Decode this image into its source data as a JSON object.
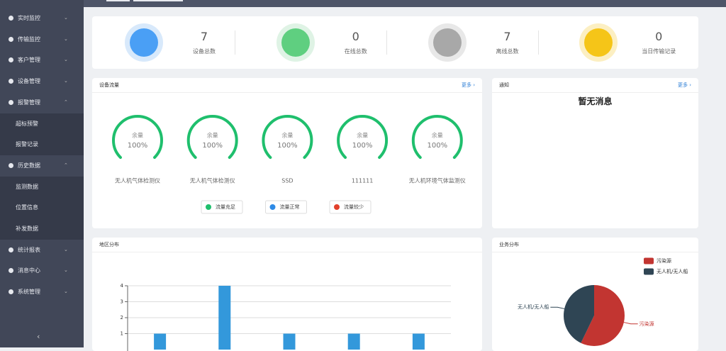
{
  "sidebar": {
    "menu": [
      {
        "label": "实时监控"
      },
      {
        "label": "传输监控"
      },
      {
        "label": "客户管理"
      },
      {
        "label": "设备管理"
      },
      {
        "label": "报警管理",
        "children": [
          "超标预警",
          "报警记录"
        ]
      },
      {
        "label": "历史数据",
        "children": [
          "监测数据",
          "位置信息",
          "补发数据"
        ]
      },
      {
        "label": "统计报表"
      },
      {
        "label": "消息中心"
      },
      {
        "label": "系统管理"
      }
    ]
  },
  "stats": [
    {
      "value": 7,
      "label": "设备总数"
    },
    {
      "value": 0,
      "label": "在线总数"
    },
    {
      "value": 7,
      "label": "离线总数"
    },
    {
      "value": 0,
      "label": "当日传输记录"
    }
  ],
  "device_flow": {
    "title": "设备流量",
    "more": "更多",
    "range": [
      0,
      100
    ],
    "gauges": [
      {
        "name": "无人机气体检测仪",
        "label": "余量",
        "value": 100,
        "value_label": "100%"
      },
      {
        "name": "无人机气体检测仪",
        "label": "余量",
        "value": 100,
        "value_label": "100%"
      },
      {
        "name": "SSD",
        "label": "余量",
        "value": 100,
        "value_label": "100%"
      },
      {
        "name": "111111",
        "label": "余量",
        "value": 100,
        "value_label": "100%"
      },
      {
        "name": "无人机环境气体监测仪",
        "label": "余量",
        "value": 100,
        "value_label": "100%"
      }
    ],
    "legend": [
      {
        "label": "流量充足",
        "color": "#1fbf6d"
      },
      {
        "label": "流量正常",
        "color": "#2e8ae6"
      },
      {
        "label": "流量较少",
        "color": "#e2412c"
      }
    ]
  },
  "notice": {
    "title": "通知",
    "more": "更多",
    "empty": "暂无消息"
  },
  "region_chart": {
    "title": "地区分布",
    "type": "bar",
    "categories": [
      null,
      null,
      null,
      null,
      null
    ],
    "values": [
      1,
      4,
      1,
      1,
      1
    ],
    "color": "#3398db",
    "ylim": [
      0,
      4
    ],
    "yticks": [
      1,
      2,
      3,
      4
    ],
    "grid": true
  },
  "business_chart": {
    "title": "业务分布",
    "type": "pie",
    "categories": [
      "污染源",
      "无人机/无人船"
    ],
    "values": [
      4,
      3
    ],
    "colors": [
      "#c23531",
      "#2f4554"
    ],
    "legend": "top-right"
  }
}
